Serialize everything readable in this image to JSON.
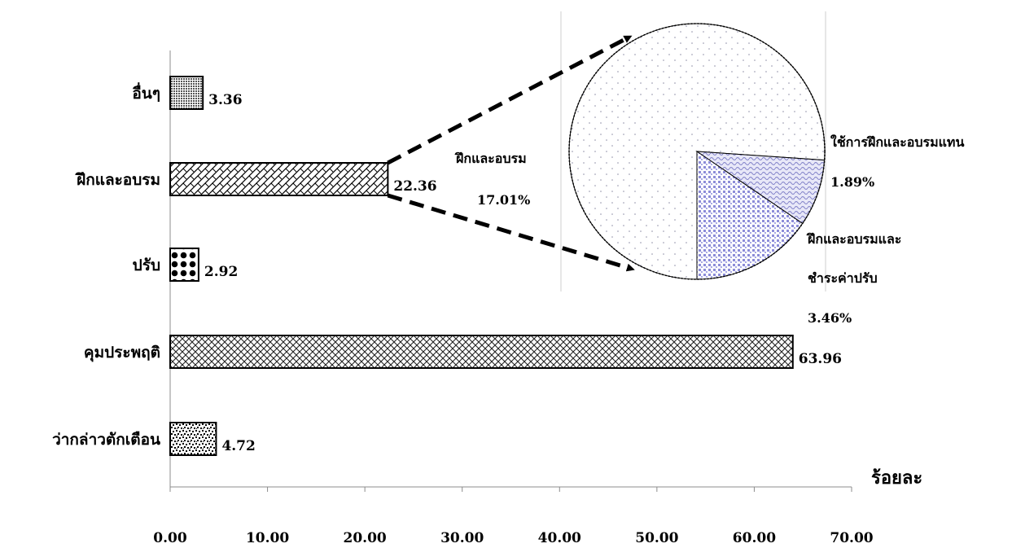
{
  "chart_data": [
    {
      "type": "bar",
      "orientation": "horizontal",
      "categories": [
        "อื่นๆ",
        "ฝึกและอบรม",
        "ปรับ",
        "คุมประพฤติ",
        "ว่ากล่าวตักเตือน"
      ],
      "values": [
        3.36,
        22.36,
        2.92,
        63.96,
        4.72
      ],
      "value_labels": [
        "3.36",
        "22.36",
        "2.92",
        "63.96",
        "4.72"
      ],
      "xlabel": "ร้อยละ",
      "xlim": [
        0,
        70
      ],
      "x_ticks": [
        0,
        10,
        20,
        30,
        40,
        50,
        60,
        70
      ],
      "x_tick_labels": [
        "0.00",
        "10.00",
        "20.00",
        "30.00",
        "40.00",
        "50.00",
        "60.00",
        "70.00"
      ],
      "grid": false,
      "patterns": [
        "dense-dots",
        "diagonal-weave",
        "large-dots",
        "diamond-checker",
        "random-dots"
      ]
    },
    {
      "type": "pie",
      "detail_of": "ฝึกและอบรม",
      "slices": [
        {
          "label": "ฝึกและอบรม",
          "value": 17.01,
          "value_label": "17.01%",
          "color": "#f4f4f8"
        },
        {
          "label": "ใช้การฝึกและอบรมแทน",
          "value": 1.89,
          "value_label": "1.89%",
          "color": "#c8c8ee"
        },
        {
          "label": "ฝึกและอบรมและ ชำระค่าปรับ",
          "label_lines": [
            "ฝึกและอบรมและ",
            "ชำระค่าปรับ"
          ],
          "value": 3.46,
          "value_label": "3.46%",
          "color": "#9a9ae0"
        }
      ]
    }
  ],
  "colors": {
    "bar_stroke": "#000000",
    "axis": "#8c8c8c",
    "arrow": "#000000"
  }
}
